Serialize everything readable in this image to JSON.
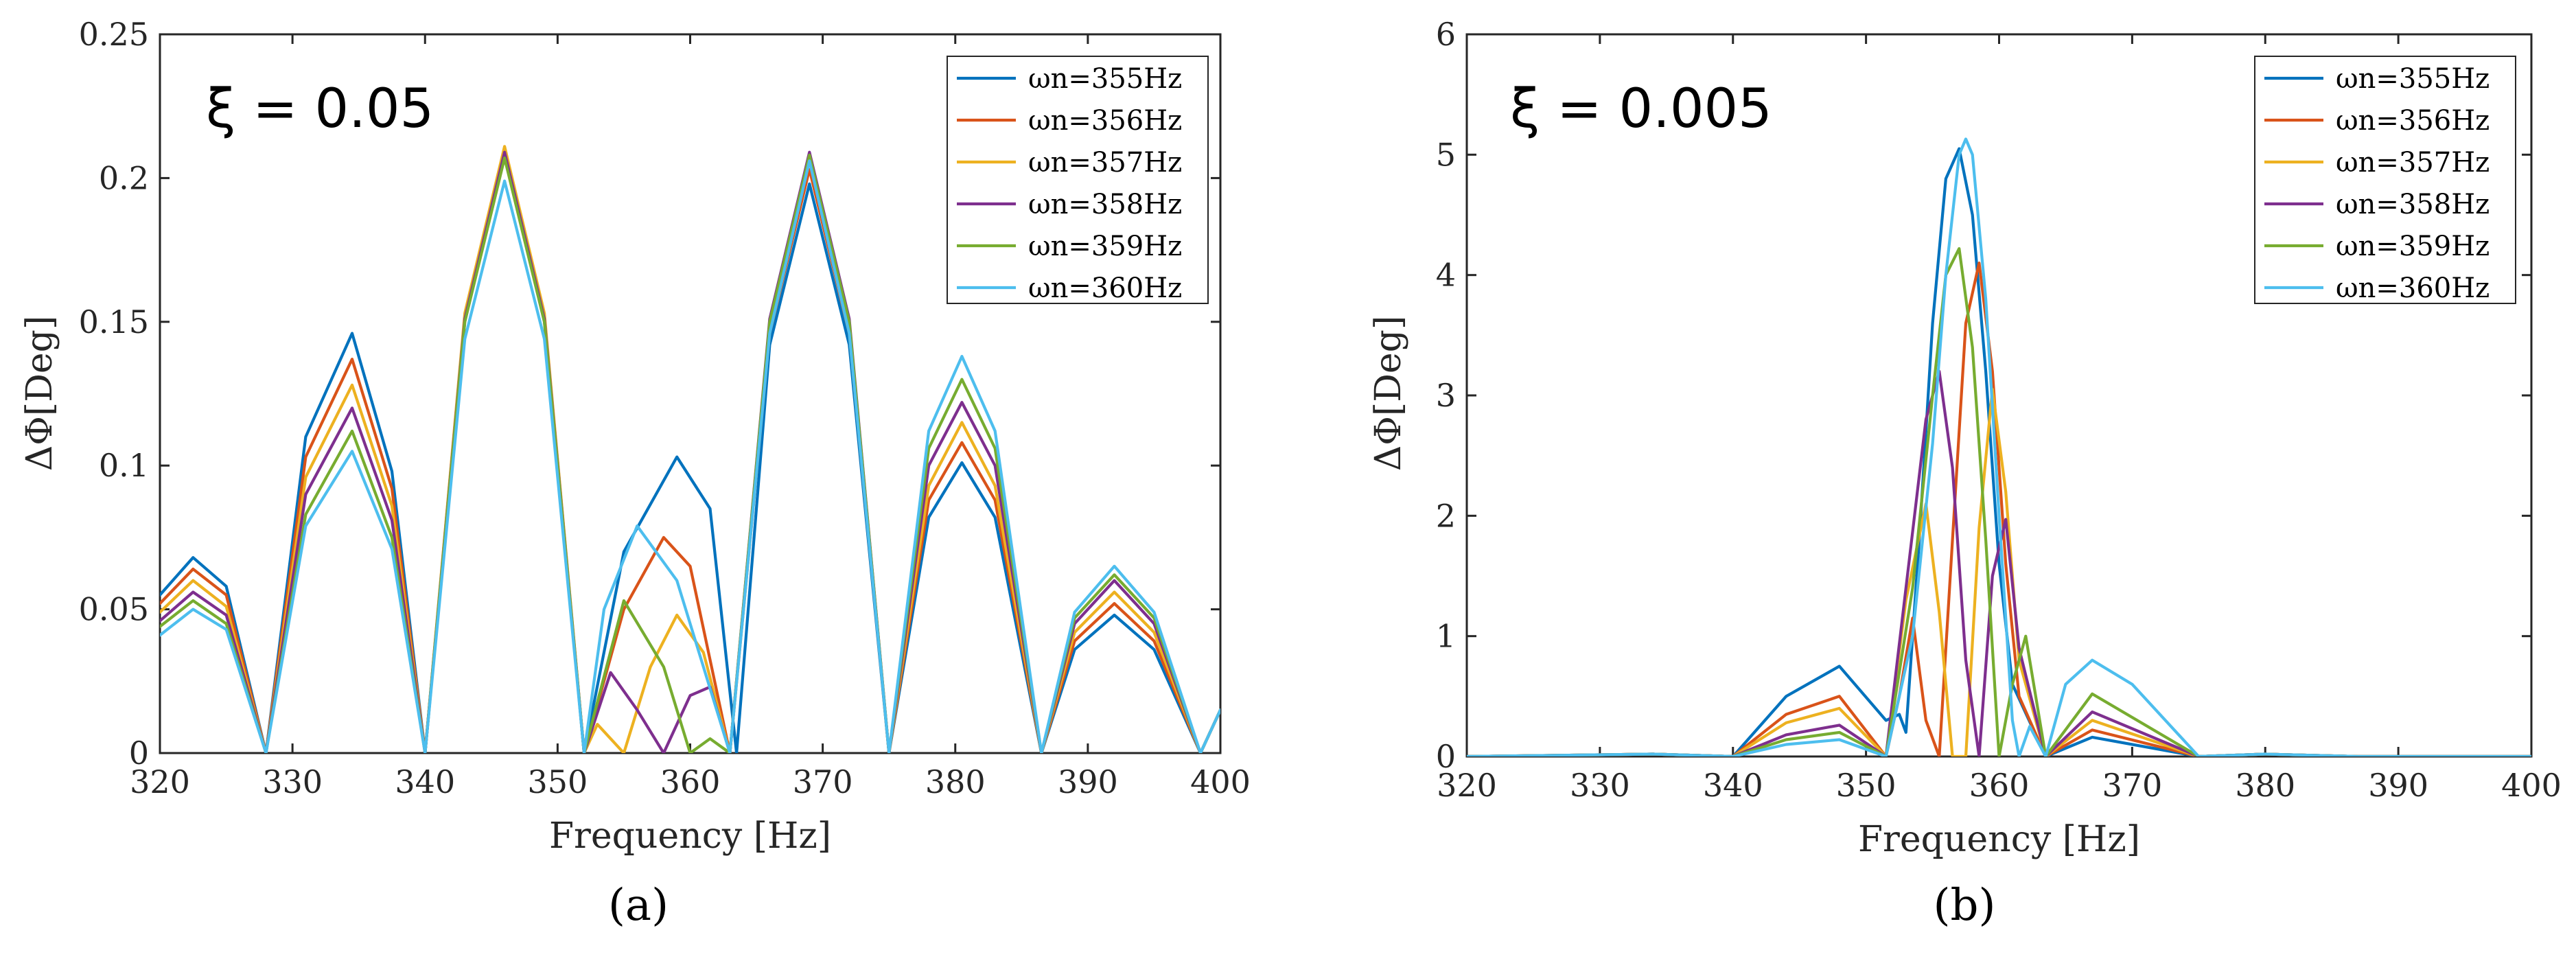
{
  "chart_data": [
    {
      "type": "line",
      "panel_label": "(a)",
      "annotation": "ξ = 0.05",
      "xlabel": "Frequency [Hz]",
      "ylabel": "ΔΦ[Deg]",
      "xlim": [
        320,
        400
      ],
      "ylim": [
        0,
        0.25
      ],
      "xticks": [
        "320",
        "330",
        "340",
        "350",
        "360",
        "370",
        "380",
        "390",
        "400"
      ],
      "yticks": [
        "0",
        "0.05",
        "0.1",
        "0.15",
        "0.2",
        "0.25"
      ],
      "legend_position": "top-right",
      "series": [
        {
          "name": "ωn=355Hz",
          "color": "#0072BD",
          "x": [
            320,
            322.5,
            325,
            328,
            331,
            334.5,
            337.5,
            340,
            343,
            346,
            349,
            352,
            355,
            359,
            361.5,
            363.5,
            366,
            369,
            372,
            375,
            378,
            380.5,
            383,
            386.5,
            389,
            392,
            395,
            398.5,
            400
          ],
          "y": [
            0.055,
            0.068,
            0.058,
            0,
            0.11,
            0.146,
            0.098,
            0,
            0.15,
            0.208,
            0.15,
            0,
            0.07,
            0.103,
            0.085,
            0,
            0.142,
            0.198,
            0.142,
            0,
            0.082,
            0.101,
            0.082,
            0,
            0.036,
            0.048,
            0.036,
            0,
            0.015
          ]
        },
        {
          "name": "ωn=356Hz",
          "color": "#D95319",
          "x": [
            320,
            322.5,
            325,
            328,
            331,
            334.5,
            337.5,
            340,
            343,
            346,
            349,
            352,
            355,
            358,
            360,
            363,
            366,
            369,
            372,
            375,
            378,
            380.5,
            383,
            386.5,
            389,
            392,
            395,
            398.5,
            400
          ],
          "y": [
            0.052,
            0.064,
            0.055,
            0,
            0.103,
            0.137,
            0.092,
            0,
            0.152,
            0.209,
            0.152,
            0,
            0.05,
            0.075,
            0.065,
            0,
            0.146,
            0.203,
            0.146,
            0,
            0.088,
            0.108,
            0.088,
            0,
            0.039,
            0.052,
            0.039,
            0,
            0.015
          ]
        },
        {
          "name": "ωn=357Hz",
          "color": "#EDB120",
          "x": [
            320,
            322.5,
            325,
            328,
            331,
            334.5,
            337.5,
            340,
            343,
            346,
            349,
            352,
            353,
            355,
            357,
            359,
            361,
            363,
            366,
            369,
            372,
            375,
            378,
            380.5,
            383,
            386.5,
            389,
            392,
            395,
            398.5,
            400
          ],
          "y": [
            0.049,
            0.06,
            0.051,
            0,
            0.096,
            0.128,
            0.086,
            0,
            0.153,
            0.211,
            0.153,
            0,
            0.01,
            0,
            0.03,
            0.048,
            0.035,
            0,
            0.15,
            0.208,
            0.15,
            0,
            0.093,
            0.115,
            0.093,
            0,
            0.042,
            0.056,
            0.042,
            0,
            0.015
          ]
        },
        {
          "name": "ωn=358Hz",
          "color": "#7E2F8E",
          "x": [
            320,
            322.5,
            325,
            328,
            331,
            334.5,
            337.5,
            340,
            343,
            346,
            349,
            352,
            354,
            356,
            358,
            360,
            361.5,
            363,
            366,
            369,
            372,
            375,
            378,
            380.5,
            383,
            386.5,
            389,
            392,
            395,
            398.5,
            400
          ],
          "y": [
            0.046,
            0.056,
            0.048,
            0,
            0.09,
            0.12,
            0.081,
            0,
            0.151,
            0.209,
            0.151,
            0,
            0.028,
            0.015,
            0,
            0.02,
            0.023,
            0,
            0.151,
            0.209,
            0.151,
            0,
            0.1,
            0.122,
            0.1,
            0,
            0.045,
            0.06,
            0.045,
            0,
            0.015
          ]
        },
        {
          "name": "ωn=359Hz",
          "color": "#77AC30",
          "x": [
            320,
            322.5,
            325,
            328,
            331,
            334.5,
            337.5,
            340,
            343,
            346,
            349,
            352,
            355,
            358,
            360,
            361.5,
            363,
            366,
            369,
            372,
            375,
            378,
            380.5,
            383,
            386.5,
            389,
            392,
            395,
            398.5,
            400
          ],
          "y": [
            0.044,
            0.053,
            0.045,
            0,
            0.083,
            0.112,
            0.075,
            0,
            0.15,
            0.207,
            0.15,
            0,
            0.053,
            0.03,
            0,
            0.005,
            0,
            0.15,
            0.208,
            0.15,
            0,
            0.106,
            0.13,
            0.106,
            0,
            0.047,
            0.062,
            0.047,
            0,
            0.015
          ]
        },
        {
          "name": "ωn=360Hz",
          "color": "#4DBEEE",
          "x": [
            320,
            322.5,
            325,
            328,
            331,
            334.5,
            337.5,
            340,
            343,
            346,
            349,
            352,
            353.5,
            356,
            359,
            361,
            363,
            366,
            369,
            372,
            375,
            378,
            380.5,
            383,
            386.5,
            389,
            392,
            395,
            398.5,
            400
          ],
          "y": [
            0.041,
            0.05,
            0.043,
            0,
            0.079,
            0.105,
            0.071,
            0,
            0.144,
            0.199,
            0.144,
            0,
            0.05,
            0.079,
            0.06,
            0.03,
            0,
            0.146,
            0.206,
            0.146,
            0,
            0.112,
            0.138,
            0.112,
            0,
            0.049,
            0.065,
            0.049,
            0,
            0.015
          ]
        }
      ]
    },
    {
      "type": "line",
      "panel_label": "(b)",
      "annotation": "ξ = 0.005",
      "xlabel": "Frequency [Hz]",
      "ylabel": "ΔΦ[Deg]",
      "xlim": [
        320,
        400
      ],
      "ylim": [
        0,
        6
      ],
      "xticks": [
        "320",
        "330",
        "340",
        "350",
        "360",
        "370",
        "380",
        "390",
        "400"
      ],
      "yticks": [
        "0",
        "1",
        "2",
        "3",
        "4",
        "5",
        "6"
      ],
      "legend_position": "top-right",
      "series": [
        {
          "name": "ωn=355Hz",
          "color": "#0072BD",
          "x": [
            320,
            328,
            334,
            340,
            344,
            348,
            351.5,
            352.5,
            353,
            354,
            355,
            356,
            357,
            358,
            359,
            360,
            361,
            363.5,
            367,
            375,
            380,
            387,
            400
          ],
          "y": [
            0,
            0.01,
            0.02,
            0,
            0.5,
            0.75,
            0.3,
            0.35,
            0.2,
            1.8,
            3.6,
            4.8,
            5.05,
            4.5,
            3.2,
            1.6,
            0.6,
            0,
            0.16,
            0,
            0.02,
            0,
            0
          ]
        },
        {
          "name": "ωn=356Hz",
          "color": "#D95319",
          "x": [
            320,
            334,
            340,
            344,
            348,
            351.5,
            352.5,
            353.5,
            354.5,
            355.5,
            356.5,
            357.5,
            358.5,
            359.5,
            360.5,
            361.5,
            363.5,
            367,
            375,
            380,
            387,
            400
          ],
          "y": [
            0,
            0.02,
            0,
            0.35,
            0.5,
            0,
            0.5,
            1.15,
            0.3,
            0,
            1.8,
            3.6,
            4.1,
            3.2,
            1.6,
            0.5,
            0,
            0.22,
            0,
            0.02,
            0,
            0
          ]
        },
        {
          "name": "ωn=357Hz",
          "color": "#EDB120",
          "x": [
            320,
            334,
            340,
            344,
            348,
            351.5,
            353,
            354.5,
            355.5,
            356.5,
            357.5,
            358.5,
            359.5,
            360.5,
            361.5,
            363.5,
            367,
            375,
            380,
            387,
            400
          ],
          "y": [
            0,
            0.02,
            0,
            0.28,
            0.4,
            0,
            1.3,
            2.1,
            1.2,
            0,
            0,
            1.9,
            3.05,
            2.2,
            0.8,
            0,
            0.3,
            0,
            0.02,
            0,
            0
          ]
        },
        {
          "name": "ωn=358Hz",
          "color": "#7E2F8E",
          "x": [
            320,
            334,
            340,
            344,
            348,
            351.5,
            353,
            354.5,
            355.5,
            356.5,
            357.5,
            358.5,
            359.5,
            360.5,
            361.5,
            363.5,
            367,
            375,
            380,
            387,
            400
          ],
          "y": [
            0,
            0.02,
            0,
            0.18,
            0.26,
            0,
            1.4,
            2.8,
            3.2,
            2.4,
            0.8,
            0,
            1.5,
            1.97,
            0.9,
            0,
            0.37,
            0,
            0.02,
            0,
            0
          ]
        },
        {
          "name": "ωn=359Hz",
          "color": "#77AC30",
          "x": [
            320,
            334,
            340,
            344,
            348,
            351.5,
            353.5,
            355,
            356,
            357,
            358,
            359,
            360,
            361,
            362,
            363.5,
            367,
            375,
            380,
            387,
            400
          ],
          "y": [
            0,
            0.02,
            0,
            0.14,
            0.2,
            0,
            1.4,
            3.0,
            4.0,
            4.22,
            3.4,
            1.8,
            0,
            0.6,
            1.0,
            0,
            0.52,
            0,
            0.02,
            0,
            0
          ]
        },
        {
          "name": "ωn=360Hz",
          "color": "#4DBEEE",
          "x": [
            320,
            334,
            340,
            344,
            348,
            351.5,
            353.5,
            355,
            356,
            357,
            357.5,
            358,
            359,
            360,
            361,
            361.5,
            362.3,
            363.5,
            365,
            367,
            370,
            375,
            380,
            387,
            400
          ],
          "y": [
            0,
            0.02,
            0,
            0.1,
            0.14,
            0,
            1.0,
            2.6,
            4.0,
            5.0,
            5.13,
            5.0,
            3.8,
            2.0,
            0.3,
            0,
            0.25,
            0,
            0.6,
            0.8,
            0.6,
            0,
            0.02,
            0,
            0
          ]
        }
      ]
    }
  ]
}
